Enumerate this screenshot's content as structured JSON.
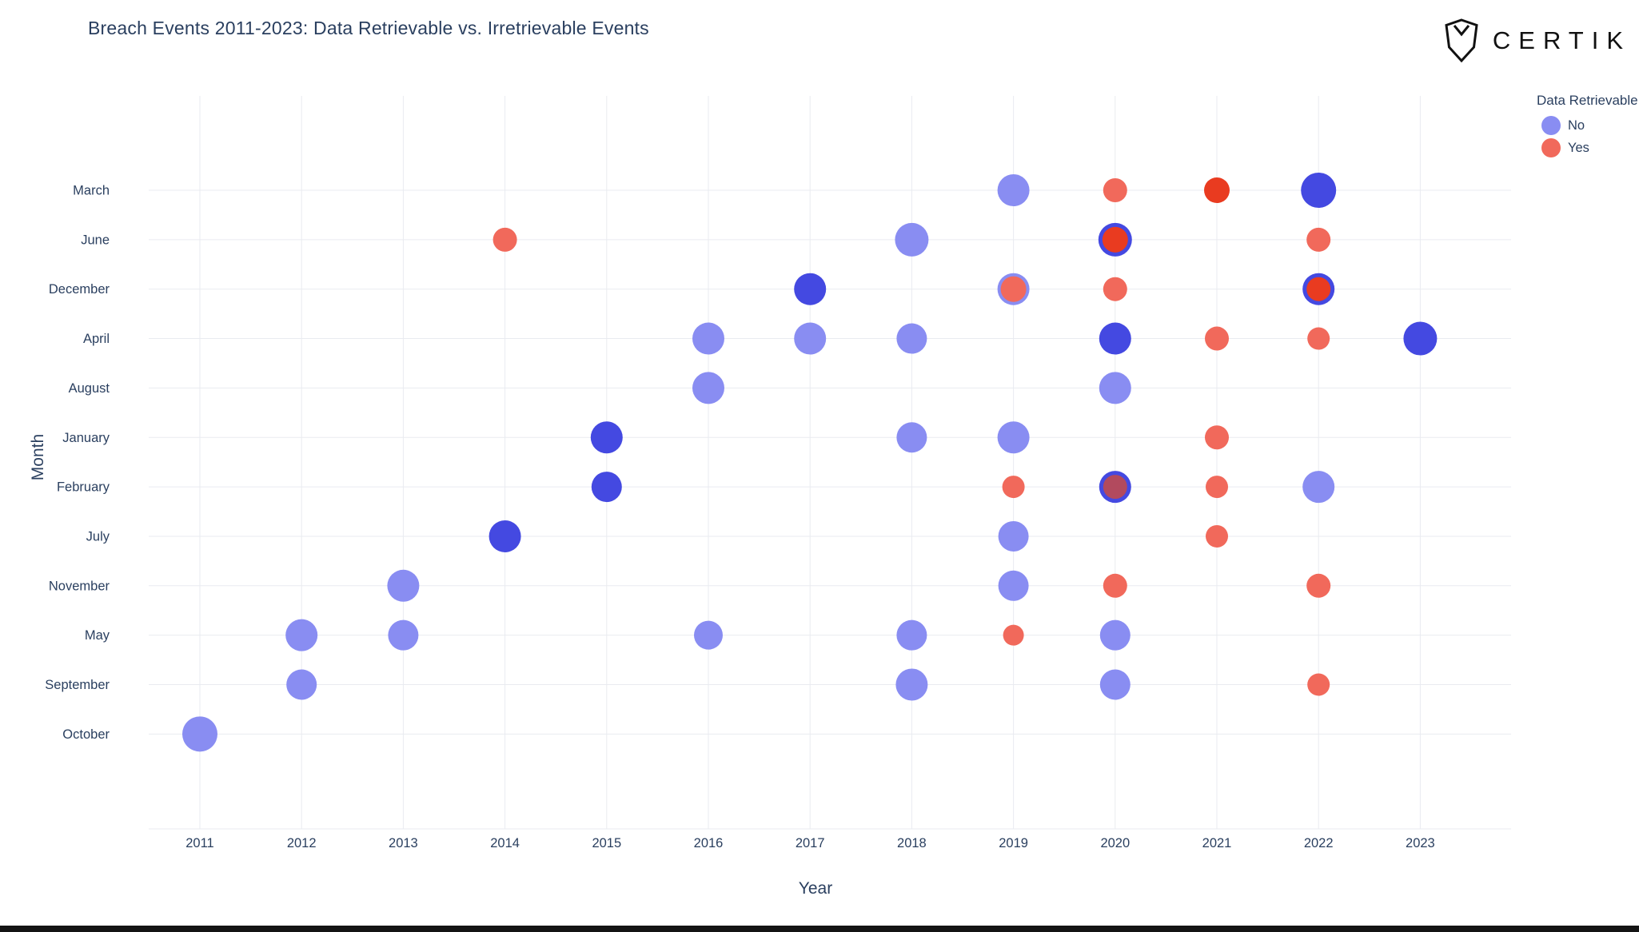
{
  "logo": {
    "text": "CERTIK"
  },
  "chart_data": {
    "type": "scatter",
    "title": "Breach Events 2011-2023: Data Retrievable vs. Irretrievable Events",
    "xlabel": "Year",
    "ylabel": "Month",
    "x_ticks": [
      2011,
      2012,
      2013,
      2014,
      2015,
      2016,
      2017,
      2018,
      2019,
      2020,
      2021,
      2022,
      2023
    ],
    "y_categories": [
      "March",
      "June",
      "December",
      "April",
      "August",
      "January",
      "February",
      "July",
      "November",
      "May",
      "September",
      "October"
    ],
    "legend": {
      "title": "Data Retrievable",
      "position": "top-right",
      "entries": [
        {
          "label": "No",
          "color": "#898df2"
        },
        {
          "label": "Yes",
          "color": "#f1695b"
        }
      ]
    },
    "colors": {
      "no": "#898df2",
      "no_dark": "#4449e1",
      "yes": "#f1695b",
      "yes_dark": "#e93b20",
      "grid": "#e9ebf0"
    },
    "grid": true,
    "points": [
      {
        "year": 2011,
        "month": "October",
        "group": "No",
        "r": 22
      },
      {
        "year": 2012,
        "month": "May",
        "group": "No",
        "r": 20
      },
      {
        "year": 2012,
        "month": "September",
        "group": "No",
        "r": 19
      },
      {
        "year": 2013,
        "month": "November",
        "group": "No",
        "r": 20
      },
      {
        "year": 2013,
        "month": "May",
        "group": "No",
        "r": 19
      },
      {
        "year": 2014,
        "month": "June",
        "group": "Yes",
        "r": 15
      },
      {
        "year": 2014,
        "month": "July",
        "group": "No",
        "r": 20,
        "dark": true
      },
      {
        "year": 2015,
        "month": "January",
        "group": "No",
        "r": 20,
        "dark": true
      },
      {
        "year": 2015,
        "month": "February",
        "group": "No",
        "r": 19,
        "dark": true
      },
      {
        "year": 2016,
        "month": "April",
        "group": "No",
        "r": 20
      },
      {
        "year": 2016,
        "month": "August",
        "group": "No",
        "r": 20
      },
      {
        "year": 2016,
        "month": "May",
        "group": "No",
        "r": 18
      },
      {
        "year": 2017,
        "month": "December",
        "group": "No",
        "r": 20,
        "dark": true
      },
      {
        "year": 2017,
        "month": "April",
        "group": "No",
        "r": 20
      },
      {
        "year": 2018,
        "month": "June",
        "group": "No",
        "r": 21
      },
      {
        "year": 2018,
        "month": "April",
        "group": "No",
        "r": 19
      },
      {
        "year": 2018,
        "month": "January",
        "group": "No",
        "r": 19
      },
      {
        "year": 2018,
        "month": "May",
        "group": "No",
        "r": 19
      },
      {
        "year": 2018,
        "month": "September",
        "group": "No",
        "r": 20
      },
      {
        "year": 2019,
        "month": "March",
        "group": "No",
        "r": 20
      },
      {
        "year": 2019,
        "month": "December",
        "group": "Yes",
        "r": 16,
        "ring": "light"
      },
      {
        "year": 2019,
        "month": "January",
        "group": "No",
        "r": 20
      },
      {
        "year": 2019,
        "month": "February",
        "group": "Yes",
        "r": 14
      },
      {
        "year": 2019,
        "month": "July",
        "group": "No",
        "r": 19
      },
      {
        "year": 2019,
        "month": "November",
        "group": "No",
        "r": 19
      },
      {
        "year": 2019,
        "month": "May",
        "group": "Yes",
        "r": 13
      },
      {
        "year": 2020,
        "month": "March",
        "group": "Yes",
        "r": 15
      },
      {
        "year": 2020,
        "month": "June",
        "group": "Yes",
        "r": 16,
        "dark": true,
        "ring": "dark"
      },
      {
        "year": 2020,
        "month": "December",
        "group": "Yes",
        "r": 15
      },
      {
        "year": 2020,
        "month": "April",
        "group": "No",
        "r": 20,
        "dark": true
      },
      {
        "year": 2020,
        "month": "August",
        "group": "No",
        "r": 20
      },
      {
        "year": 2020,
        "month": "February",
        "group": "Yes",
        "r": 15,
        "fill": "#b24a5e",
        "ring": "dark"
      },
      {
        "year": 2020,
        "month": "November",
        "group": "Yes",
        "r": 15
      },
      {
        "year": 2020,
        "month": "May",
        "group": "No",
        "r": 19
      },
      {
        "year": 2020,
        "month": "September",
        "group": "No",
        "r": 19
      },
      {
        "year": 2021,
        "month": "March",
        "group": "Yes",
        "r": 16,
        "dark": true
      },
      {
        "year": 2021,
        "month": "April",
        "group": "Yes",
        "r": 15
      },
      {
        "year": 2021,
        "month": "January",
        "group": "Yes",
        "r": 15
      },
      {
        "year": 2021,
        "month": "February",
        "group": "Yes",
        "r": 14
      },
      {
        "year": 2021,
        "month": "July",
        "group": "Yes",
        "r": 14
      },
      {
        "year": 2022,
        "month": "March",
        "group": "No",
        "r": 22,
        "dark": true
      },
      {
        "year": 2022,
        "month": "June",
        "group": "Yes",
        "r": 15
      },
      {
        "year": 2022,
        "month": "December",
        "group": "Yes",
        "r": 15,
        "dark": true,
        "ring": "dark"
      },
      {
        "year": 2022,
        "month": "April",
        "group": "Yes",
        "r": 14
      },
      {
        "year": 2022,
        "month": "February",
        "group": "No",
        "r": 20
      },
      {
        "year": 2022,
        "month": "November",
        "group": "Yes",
        "r": 15
      },
      {
        "year": 2022,
        "month": "September",
        "group": "Yes",
        "r": 14
      },
      {
        "year": 2023,
        "month": "April",
        "group": "No",
        "r": 21,
        "dark": true
      }
    ]
  }
}
